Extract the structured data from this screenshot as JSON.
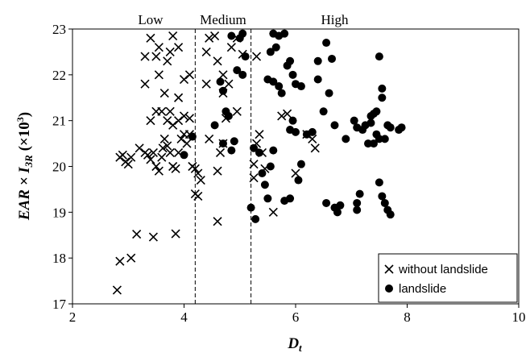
{
  "chart_data": {
    "type": "scatter",
    "xlabel": "Dt",
    "ylabel": "EAR × I3R (×10³)",
    "xlim": [
      2,
      10
    ],
    "ylim": [
      17,
      23
    ],
    "xticks": [
      "2",
      "4",
      "6",
      "8",
      "10"
    ],
    "yticks": [
      "17",
      "18",
      "19",
      "20",
      "21",
      "22",
      "23"
    ],
    "grid": false,
    "legend_position": "bottom-right",
    "regions": [
      {
        "label": "Low"
      },
      {
        "label": "Medium"
      },
      {
        "label": "High"
      }
    ],
    "region_boundaries": [
      4.2,
      5.2
    ],
    "series": [
      {
        "name": "without landslide",
        "marker": "x",
        "color": "#000000",
        "points": [
          [
            2.8,
            17.3
          ],
          [
            2.85,
            17.93
          ],
          [
            3.05,
            18.0
          ],
          [
            3.15,
            18.52
          ],
          [
            3.45,
            18.46
          ],
          [
            3.85,
            18.53
          ],
          [
            2.85,
            20.2
          ],
          [
            2.9,
            20.25
          ],
          [
            2.95,
            20.1
          ],
          [
            3.0,
            20.05
          ],
          [
            3.05,
            20.2
          ],
          [
            3.2,
            20.4
          ],
          [
            3.3,
            20.3
          ],
          [
            3.35,
            20.25
          ],
          [
            3.4,
            20.15
          ],
          [
            3.45,
            20.3
          ],
          [
            3.5,
            20.0
          ],
          [
            3.55,
            19.9
          ],
          [
            3.6,
            20.2
          ],
          [
            3.62,
            20.4
          ],
          [
            3.65,
            20.6
          ],
          [
            3.7,
            20.45
          ],
          [
            3.75,
            20.3
          ],
          [
            3.8,
            20.0
          ],
          [
            3.85,
            19.95
          ],
          [
            3.9,
            20.3
          ],
          [
            3.95,
            20.6
          ],
          [
            4.0,
            20.7
          ],
          [
            4.05,
            20.5
          ],
          [
            4.1,
            20.7
          ],
          [
            4.15,
            20.0
          ],
          [
            4.2,
            19.95
          ],
          [
            4.25,
            19.85
          ],
          [
            4.3,
            19.7
          ],
          [
            4.45,
            20.6
          ],
          [
            4.6,
            19.9
          ],
          [
            4.65,
            20.3
          ],
          [
            4.7,
            20.5
          ],
          [
            3.4,
            21.0
          ],
          [
            3.5,
            21.2
          ],
          [
            3.6,
            21.2
          ],
          [
            3.7,
            21.0
          ],
          [
            3.75,
            21.2
          ],
          [
            3.8,
            20.9
          ],
          [
            3.9,
            21.0
          ],
          [
            4.0,
            21.1
          ],
          [
            4.1,
            21.05
          ],
          [
            3.3,
            21.8
          ],
          [
            3.55,
            22.0
          ],
          [
            3.65,
            21.6
          ],
          [
            3.9,
            21.5
          ],
          [
            4.0,
            21.9
          ],
          [
            4.1,
            22.0
          ],
          [
            3.3,
            22.4
          ],
          [
            3.4,
            22.8
          ],
          [
            3.5,
            22.4
          ],
          [
            3.55,
            22.6
          ],
          [
            3.7,
            22.3
          ],
          [
            3.75,
            22.5
          ],
          [
            3.8,
            22.85
          ],
          [
            3.9,
            22.6
          ],
          [
            4.4,
            22.5
          ],
          [
            4.45,
            22.8
          ],
          [
            4.55,
            22.85
          ],
          [
            4.6,
            22.3
          ],
          [
            4.7,
            22.0
          ],
          [
            4.8,
            21.8
          ],
          [
            4.85,
            22.6
          ],
          [
            4.95,
            22.8
          ],
          [
            5.05,
            22.45
          ],
          [
            5.3,
            22.4
          ],
          [
            4.4,
            21.8
          ],
          [
            4.7,
            21.6
          ],
          [
            4.75,
            21.05
          ],
          [
            4.95,
            21.2
          ],
          [
            4.2,
            19.4
          ],
          [
            4.25,
            19.35
          ],
          [
            4.6,
            18.8
          ],
          [
            5.25,
            19.75
          ],
          [
            5.3,
            20.5
          ],
          [
            5.35,
            20.7
          ],
          [
            5.4,
            20.3
          ],
          [
            5.45,
            19.95
          ],
          [
            5.6,
            19.0
          ],
          [
            5.75,
            21.1
          ],
          [
            5.85,
            21.15
          ],
          [
            6.0,
            19.85
          ],
          [
            6.2,
            20.7
          ],
          [
            6.3,
            20.6
          ],
          [
            6.35,
            20.4
          ],
          [
            5.25,
            20.05
          ]
        ]
      },
      {
        "name": "landslide",
        "marker": "circle",
        "color": "#000000",
        "points": [
          [
            4.0,
            20.25
          ],
          [
            4.15,
            20.65
          ],
          [
            4.55,
            20.9
          ],
          [
            4.7,
            20.5
          ],
          [
            4.75,
            21.2
          ],
          [
            4.8,
            21.1
          ],
          [
            4.85,
            20.35
          ],
          [
            4.9,
            20.55
          ],
          [
            4.65,
            21.85
          ],
          [
            4.7,
            21.65
          ],
          [
            4.85,
            22.85
          ],
          [
            5.0,
            22.8
          ],
          [
            5.05,
            22.9
          ],
          [
            4.95,
            22.1
          ],
          [
            5.05,
            22.0
          ],
          [
            5.1,
            22.4
          ],
          [
            5.2,
            19.1
          ],
          [
            5.25,
            20.4
          ],
          [
            5.28,
            18.85
          ],
          [
            5.35,
            20.3
          ],
          [
            5.4,
            19.85
          ],
          [
            5.45,
            19.6
          ],
          [
            5.5,
            19.3
          ],
          [
            5.55,
            20.0
          ],
          [
            5.6,
            20.35
          ],
          [
            5.6,
            22.9
          ],
          [
            5.7,
            22.85
          ],
          [
            5.8,
            22.9
          ],
          [
            5.65,
            22.6
          ],
          [
            5.55,
            22.5
          ],
          [
            5.5,
            21.9
          ],
          [
            5.6,
            21.85
          ],
          [
            5.7,
            21.75
          ],
          [
            5.75,
            21.6
          ],
          [
            5.85,
            22.2
          ],
          [
            5.9,
            22.3
          ],
          [
            5.95,
            22.0
          ],
          [
            6.0,
            21.8
          ],
          [
            6.1,
            21.75
          ],
          [
            5.95,
            21.0
          ],
          [
            5.9,
            20.8
          ],
          [
            6.0,
            20.75
          ],
          [
            5.8,
            19.25
          ],
          [
            5.9,
            19.3
          ],
          [
            6.05,
            19.7
          ],
          [
            6.1,
            20.05
          ],
          [
            6.2,
            20.7
          ],
          [
            6.3,
            20.75
          ],
          [
            6.4,
            22.3
          ],
          [
            6.55,
            22.7
          ],
          [
            6.65,
            22.35
          ],
          [
            6.4,
            21.9
          ],
          [
            6.6,
            21.6
          ],
          [
            6.5,
            21.2
          ],
          [
            6.7,
            20.9
          ],
          [
            6.55,
            19.2
          ],
          [
            6.7,
            19.1
          ],
          [
            6.75,
            19.0
          ],
          [
            6.8,
            19.15
          ],
          [
            6.9,
            20.6
          ],
          [
            7.05,
            21.0
          ],
          [
            7.1,
            20.85
          ],
          [
            7.1,
            19.2
          ],
          [
            7.1,
            19.05
          ],
          [
            7.15,
            19.4
          ],
          [
            7.2,
            20.8
          ],
          [
            7.25,
            20.9
          ],
          [
            7.3,
            20.5
          ],
          [
            7.35,
            20.95
          ],
          [
            7.35,
            21.1
          ],
          [
            7.4,
            21.15
          ],
          [
            7.45,
            21.2
          ],
          [
            7.45,
            20.7
          ],
          [
            7.5,
            20.6
          ],
          [
            7.5,
            19.65
          ],
          [
            7.55,
            19.35
          ],
          [
            7.5,
            22.4
          ],
          [
            7.55,
            21.7
          ],
          [
            7.55,
            21.5
          ],
          [
            7.6,
            19.2
          ],
          [
            7.6,
            20.6
          ],
          [
            7.65,
            19.05
          ],
          [
            7.7,
            18.95
          ],
          [
            7.65,
            20.9
          ],
          [
            7.7,
            20.85
          ],
          [
            7.85,
            20.8
          ],
          [
            7.9,
            20.85
          ],
          [
            7.4,
            20.5
          ]
        ]
      }
    ]
  }
}
